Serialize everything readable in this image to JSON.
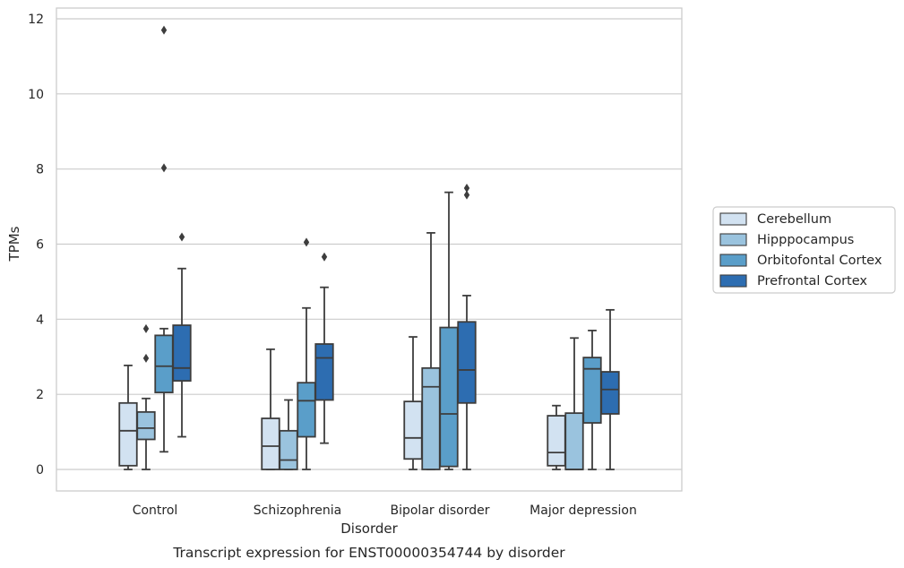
{
  "chart_data": {
    "type": "box",
    "xlabel": "Disorder",
    "ylabel": "TPMs",
    "caption": "Transcript expression for ENST00000354744 by disorder",
    "ylim": [
      -0.55,
      12.3
    ],
    "yticks": [
      0,
      2,
      4,
      6,
      8,
      10,
      12
    ],
    "grid": "horizontal",
    "legend_position": "right",
    "categories": [
      "Control",
      "Schizophrenia",
      "Bipolar disorder",
      "Major depression"
    ],
    "series": [
      {
        "name": "Cerebellum",
        "color": "#d2e2f1",
        "boxes": [
          {
            "whisker_low": 0.0,
            "q1": 0.1,
            "median": 1.03,
            "q3": 1.77,
            "whisker_high": 2.77,
            "outliers": []
          },
          {
            "whisker_low": 0.0,
            "q1": 0.0,
            "median": 0.62,
            "q3": 1.36,
            "whisker_high": 3.2,
            "outliers": []
          },
          {
            "whisker_low": 0.0,
            "q1": 0.28,
            "median": 0.84,
            "q3": 1.81,
            "whisker_high": 3.53,
            "outliers": []
          },
          {
            "whisker_low": 0.0,
            "q1": 0.1,
            "median": 0.45,
            "q3": 1.43,
            "whisker_high": 1.7,
            "outliers": []
          }
        ]
      },
      {
        "name": "Hipppocampus",
        "color": "#9ac3de",
        "boxes": [
          {
            "whisker_low": 0.0,
            "q1": 0.8,
            "median": 1.1,
            "q3": 1.53,
            "whisker_high": 1.89,
            "outliers": [
              2.96,
              3.75
            ]
          },
          {
            "whisker_low": 0.0,
            "q1": 0.0,
            "median": 0.25,
            "q3": 1.03,
            "whisker_high": 1.85,
            "outliers": []
          },
          {
            "whisker_low": 0.0,
            "q1": 0.0,
            "median": 2.2,
            "q3": 2.7,
            "whisker_high": 6.3,
            "outliers": []
          },
          {
            "whisker_low": 0.0,
            "q1": 0.0,
            "median": 0.0,
            "q3": 1.5,
            "whisker_high": 3.5,
            "outliers": []
          }
        ]
      },
      {
        "name": "Orbitofontal Cortex",
        "color": "#5a9ec9",
        "boxes": [
          {
            "whisker_low": 0.47,
            "q1": 2.05,
            "median": 2.75,
            "q3": 3.57,
            "whisker_high": 3.75,
            "outliers": [
              8.03,
              11.7
            ]
          },
          {
            "whisker_low": 0.0,
            "q1": 0.87,
            "median": 1.83,
            "q3": 2.31,
            "whisker_high": 4.3,
            "outliers": [
              6.05
            ]
          },
          {
            "whisker_low": 0.0,
            "q1": 0.08,
            "median": 1.48,
            "q3": 3.78,
            "whisker_high": 7.38,
            "outliers": []
          },
          {
            "whisker_low": 0.0,
            "q1": 1.24,
            "median": 2.68,
            "q3": 2.98,
            "whisker_high": 3.7,
            "outliers": []
          }
        ]
      },
      {
        "name": "Prefrontal Cortex",
        "color": "#2d6db1",
        "boxes": [
          {
            "whisker_low": 0.87,
            "q1": 2.36,
            "median": 2.7,
            "q3": 3.84,
            "whisker_high": 5.35,
            "outliers": [
              6.19
            ]
          },
          {
            "whisker_low": 0.7,
            "q1": 1.85,
            "median": 2.97,
            "q3": 3.34,
            "whisker_high": 4.85,
            "outliers": [
              5.66
            ]
          },
          {
            "whisker_low": 0.0,
            "q1": 1.77,
            "median": 2.65,
            "q3": 3.93,
            "whisker_high": 4.63,
            "outliers": [
              7.31,
              7.49
            ]
          },
          {
            "whisker_low": 0.0,
            "q1": 1.48,
            "median": 2.13,
            "q3": 2.6,
            "whisker_high": 4.25,
            "outliers": []
          }
        ]
      }
    ]
  }
}
